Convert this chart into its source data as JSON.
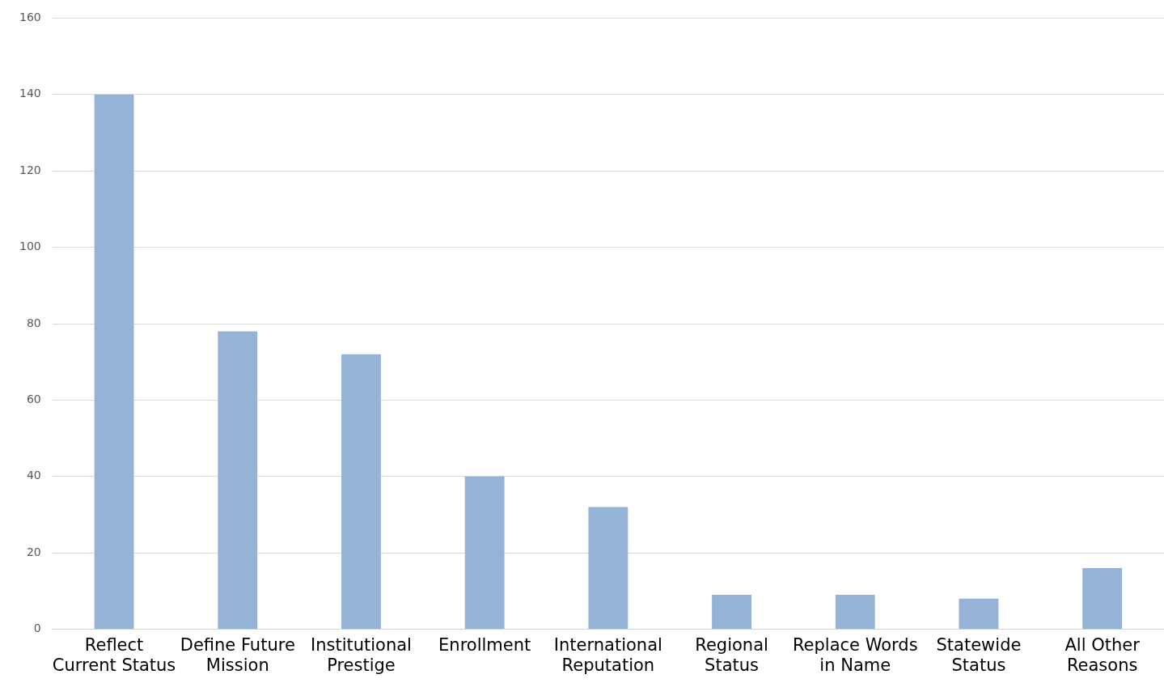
{
  "chart_data": {
    "type": "bar",
    "categories": [
      "Reflect Current Status",
      "Define Future Mission",
      "Institutional Prestige",
      "Enrollment",
      "International Reputation",
      "Regional Status",
      "Replace Words in Name",
      "Statewide Status",
      "All Other Reasons"
    ],
    "values": [
      140,
      78,
      72,
      40,
      32,
      9,
      9,
      8,
      16
    ],
    "color": "#95b3d7",
    "ylim": [
      0,
      160
    ],
    "yticks": [
      0,
      20,
      40,
      60,
      80,
      100,
      120,
      140,
      160
    ],
    "grid": "y"
  }
}
